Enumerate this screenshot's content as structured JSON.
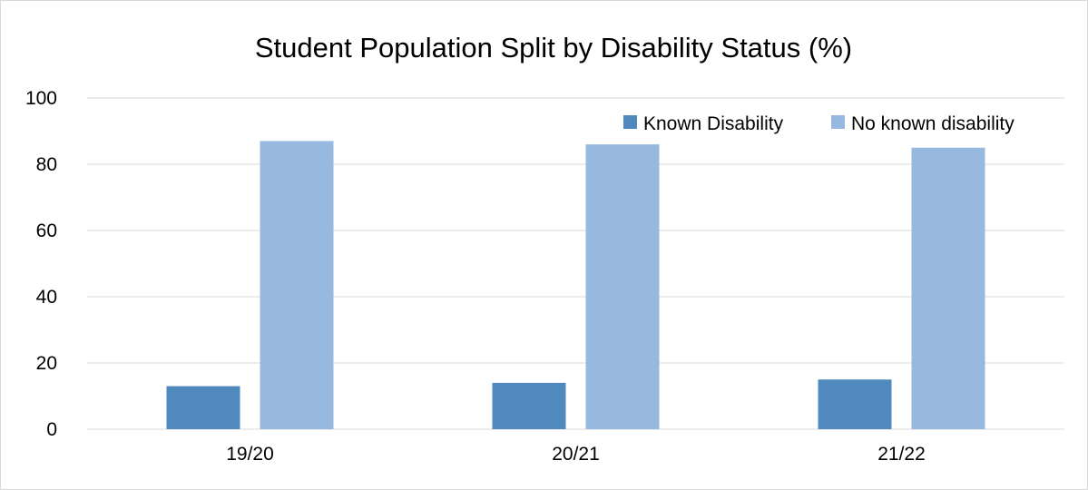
{
  "chart_data": {
    "type": "bar",
    "title": "Student Population Split by Disability Status (%)",
    "xlabel": "",
    "ylabel": "",
    "categories": [
      "19/20",
      "20/21",
      "21/22"
    ],
    "series": [
      {
        "name": "Known Disability",
        "values": [
          13,
          14,
          15
        ],
        "color": "#4f89bd"
      },
      {
        "name": "No known disability",
        "values": [
          87,
          86,
          85
        ],
        "color": "#97b9df"
      }
    ],
    "ylim": [
      0,
      100
    ],
    "yticks": [
      "0",
      "20",
      "40",
      "60",
      "80",
      "100"
    ],
    "grid": true,
    "gridColor": "#d9d9d9",
    "legend": "top-right"
  }
}
